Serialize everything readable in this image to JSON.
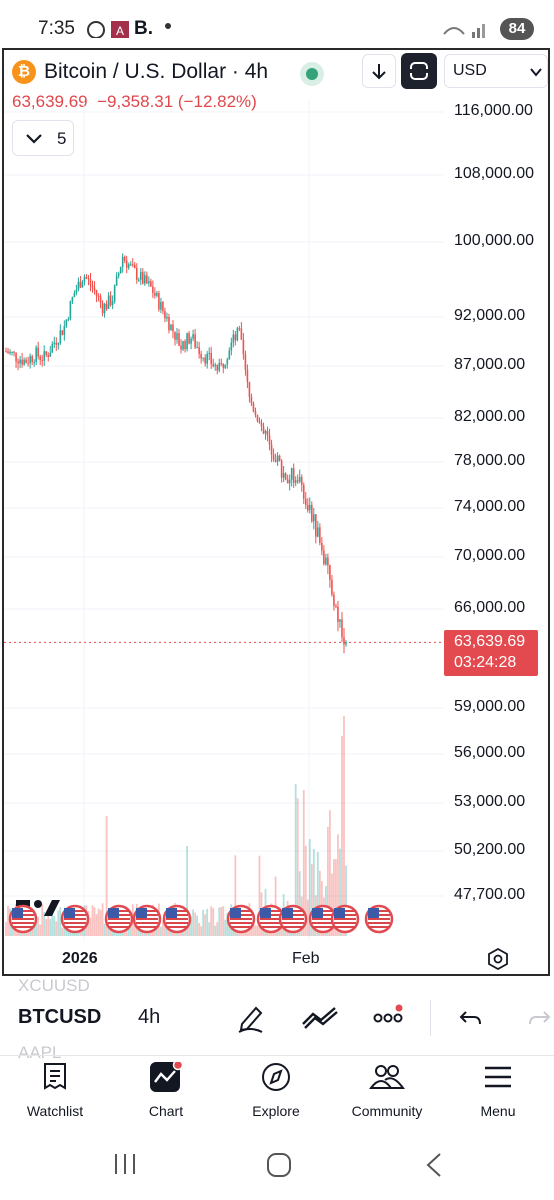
{
  "status_bar": {
    "time": "7:35",
    "app_initial": "B.",
    "battery": "84"
  },
  "header": {
    "title": "Bitcoin / U.S. Dollar · 4h",
    "currency": "USD",
    "indicators_count": "5",
    "price": "63,639.69",
    "change": "−9,358.31 (−12.82%)"
  },
  "chart": {
    "price_labels": [
      "116,000.00",
      "108,000.00",
      "100,000.00",
      "92,000.00",
      "87,000.00",
      "82,000.00",
      "78,000.00",
      "74,000.00",
      "70,000.00",
      "66,000.00",
      "59,000.00",
      "56,000.00",
      "53,000.00",
      "50,200.00",
      "47,700.00"
    ],
    "current_price": "63,639.69",
    "countdown": "03:24:28",
    "x_labels": [
      "2026",
      "Feb"
    ]
  },
  "chart_data": {
    "type": "candlestick",
    "symbol": "BTCUSD",
    "interval": "4h",
    "y_ticks": [
      116000,
      108000,
      100000,
      92000,
      87000,
      82000,
      78000,
      74000,
      70000,
      66000,
      59000,
      56000,
      53000,
      50200,
      47700
    ],
    "last_price": 63639.69,
    "x_ticks": [
      "2026",
      "Feb"
    ],
    "approx_closes": [
      88500,
      88000,
      87500,
      88200,
      87800,
      89500,
      91000,
      94500,
      96500,
      95000,
      93000,
      94000,
      98500,
      97000,
      96000,
      95000,
      93000,
      91000,
      89000,
      90000,
      88500,
      87500,
      86500,
      89000,
      90500,
      84000,
      82000,
      80000,
      78000,
      76500,
      77000,
      74500,
      72000,
      69000,
      66000,
      63639.69
    ]
  },
  "toolbar": {
    "symbol": "BTCUSD",
    "interval": "4h",
    "ghost_above": "XCUUSD",
    "ghost_below": "AAPL"
  },
  "nav": [
    {
      "label": "Watchlist",
      "icon": "watchlist-icon"
    },
    {
      "label": "Chart",
      "icon": "chart-icon"
    },
    {
      "label": "Explore",
      "icon": "compass-icon"
    },
    {
      "label": "Community",
      "icon": "community-icon"
    },
    {
      "label": "Menu",
      "icon": "menu-icon"
    }
  ]
}
